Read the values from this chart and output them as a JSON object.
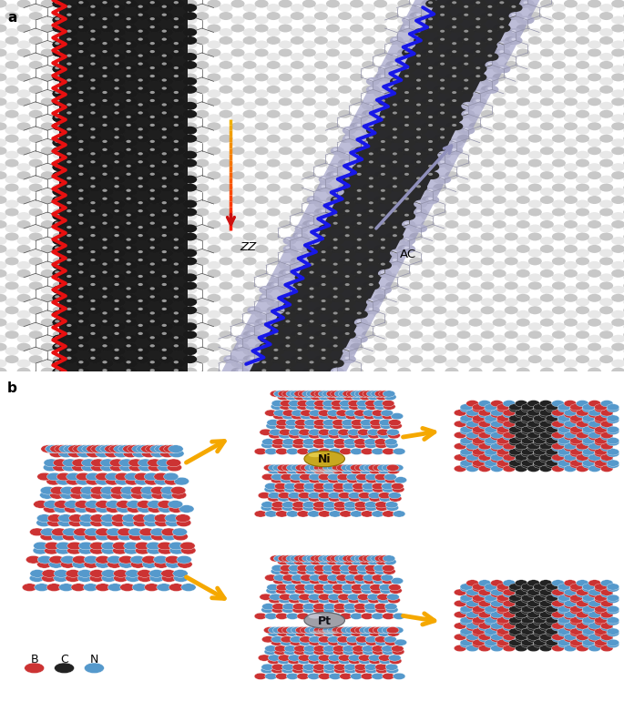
{
  "fig_width": 6.85,
  "fig_height": 7.7,
  "bg_color": "#ffffff",
  "hbn_light1": "#c8c8c8",
  "hbn_light2": "#e8e8e8",
  "hbn_bond": "#b0b0b0",
  "gnr_bg": "#1e1e1e",
  "gnr_dark_atom": "#1a1a1a",
  "gnr_light_atom": "#d8d8d8",
  "gnr_bond": "#505050",
  "diag_bg_outer": "#8888b8",
  "diag_bg_inner": "#252525",
  "diag_light_atom": "#c0c0cc",
  "red_zz": "#e81010",
  "blue_ac": "#1818e8",
  "zz_arrow_top": "#f0b000",
  "zz_arrow_bot": "#cc1010",
  "ac_arrow": "#9090cc",
  "b_color": "#cc3333",
  "n_color": "#5599cc",
  "c_color": "#222222",
  "ni_color": "#c8a820",
  "pt_color": "#a0a0a8",
  "orange": "#f5a800",
  "label_a": "a",
  "label_b": "b",
  "zz_label": "ZZ",
  "ac_label": "AC",
  "legend_labels": [
    "B",
    "C",
    "N"
  ],
  "legend_colors": [
    "#cc3333",
    "#222222",
    "#5599cc"
  ]
}
